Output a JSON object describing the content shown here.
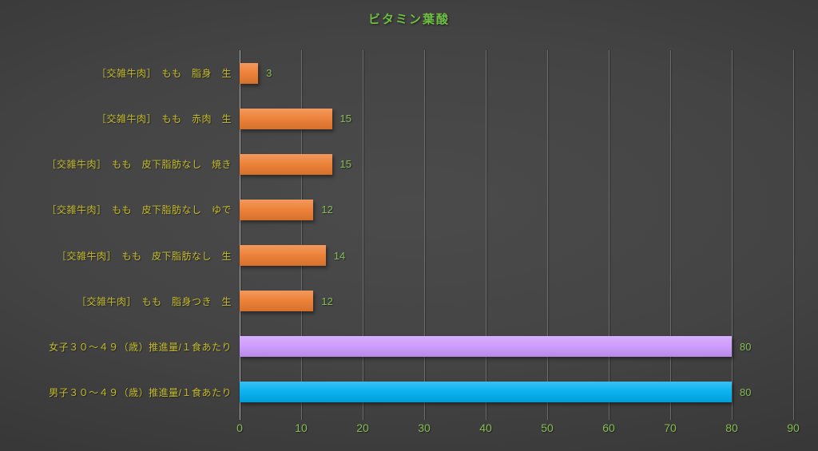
{
  "chart_data": {
    "type": "bar",
    "orientation": "horizontal",
    "title": "ビタミン葉酸",
    "categories": [
      "［交雑牛肉］　もも　脂身　生",
      "［交雑牛肉］　もも　赤肉　生",
      "［交雑牛肉］　もも　皮下脂肪なし　焼き",
      "［交雑牛肉］　もも　皮下脂肪なし　ゆで",
      "［交雑牛肉］　もも　皮下脂肪なし　生",
      "［交雑牛肉］　もも　脂身つき　生",
      "女子３０～４９（歳）推進量/１食あたり",
      "男子３０～４９（歳）推進量/１食あたり"
    ],
    "values": [
      3,
      15,
      15,
      12,
      14,
      12,
      80,
      80
    ],
    "data_labels": [
      "3",
      "15",
      "15",
      "12",
      "14",
      "12",
      "80",
      "80"
    ],
    "bar_colors": [
      "#ED7D31",
      "#ED7D31",
      "#ED7D31",
      "#ED7D31",
      "#ED7D31",
      "#ED7D31",
      "#CC99FF",
      "#00B0F0"
    ],
    "xlabel": "",
    "ylabel": "",
    "xlim": [
      0,
      90
    ],
    "xticks": [
      0,
      10,
      20,
      30,
      40,
      50,
      60,
      70,
      80,
      90
    ],
    "grid": true,
    "legend": false
  },
  "style": {
    "title_color": "#6FBE44",
    "category_label_color": "#C6BC2D",
    "value_label_color": "#85BD52",
    "tick_label_color": "#85BD52"
  }
}
